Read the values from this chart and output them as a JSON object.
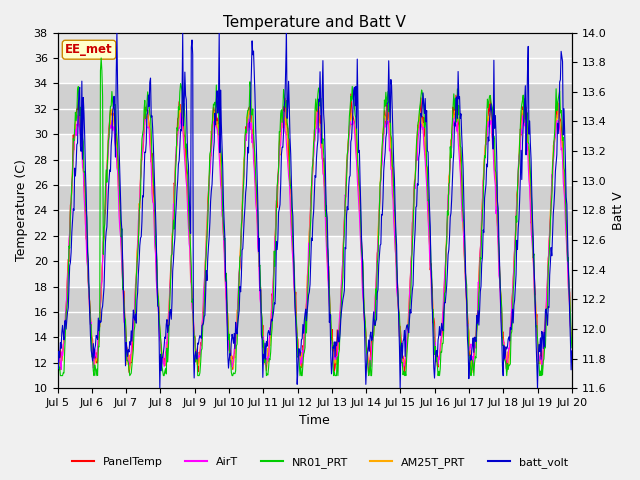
{
  "title": "Temperature and Batt V",
  "xlabel": "Time",
  "ylabel_left": "Temperature (C)",
  "ylabel_right": "Batt V",
  "xlim": [
    0,
    15
  ],
  "ylim_left": [
    10,
    38
  ],
  "ylim_right": [
    11.6,
    14.0
  ],
  "x_tick_labels": [
    "Jul 5",
    "Jul 6",
    "Jul 7",
    "Jul 8",
    "Jul 9",
    "Jul 10",
    "Jul 11",
    "Jul 12",
    "Jul 13",
    "Jul 14",
    "Jul 15",
    "Jul 16",
    "Jul 17",
    "Jul 18",
    "Jul 19",
    "Jul 20"
  ],
  "y_ticks_left": [
    10,
    12,
    14,
    16,
    18,
    20,
    22,
    24,
    26,
    28,
    30,
    32,
    34,
    36,
    38
  ],
  "y_ticks_right": [
    11.6,
    11.8,
    12.0,
    12.2,
    12.4,
    12.6,
    12.8,
    13.0,
    13.2,
    13.4,
    13.6,
    13.8,
    14.0
  ],
  "colors": {
    "PanelTemp": "#ff0000",
    "AirT": "#ff00ff",
    "NR01_PRT": "#00cc00",
    "AM25T_PRT": "#ffaa00",
    "batt_volt": "#0000cc"
  },
  "annotation_text": "EE_met",
  "annotation_color": "#cc0000",
  "fig_facecolor": "#f0f0f0",
  "plot_bg_light": "#e8e8e8",
  "plot_bg_dark": "#d0d0d0",
  "title_fontsize": 11,
  "tick_fontsize": 8,
  "label_fontsize": 9,
  "legend_fontsize": 8,
  "linewidth": 0.8
}
